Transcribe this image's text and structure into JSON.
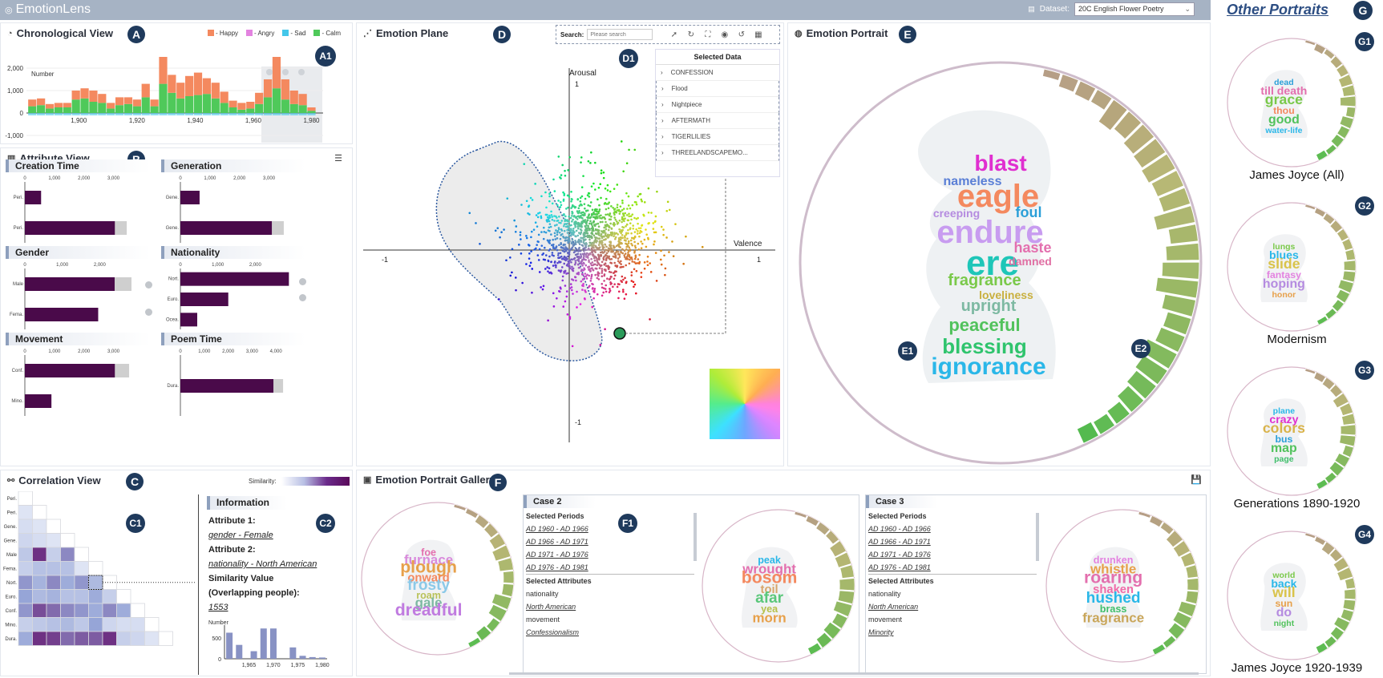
{
  "app": {
    "title": "EmotionLens",
    "dataset_label": "Dataset:",
    "dataset_value": "20C English Flower Poetry"
  },
  "chronological": {
    "badge": "A",
    "badge_sub": "A1",
    "title": "Chronological View",
    "ylabel": "Number",
    "legend": [
      {
        "label": "- Happy",
        "color": "#f4895f"
      },
      {
        "label": "- Angry",
        "color": "#e383e0"
      },
      {
        "label": "- Sad",
        "color": "#44c7ea"
      },
      {
        "label": "- Calm",
        "color": "#4fc95a"
      }
    ],
    "yticks": [
      "2,000",
      "1,000",
      "0",
      "-1,000"
    ],
    "xticks": [
      "1,900",
      "1,920",
      "1,940",
      "1,960",
      "1,980"
    ],
    "chart_data": {
      "type": "bar",
      "x": [
        1884,
        1887,
        1890,
        1893,
        1896,
        1899,
        1902,
        1905,
        1908,
        1911,
        1914,
        1917,
        1920,
        1923,
        1926,
        1929,
        1932,
        1935,
        1938,
        1941,
        1944,
        1947,
        1950,
        1953,
        1956,
        1959,
        1962,
        1965,
        1968,
        1971,
        1974,
        1977,
        1980
      ],
      "series": [
        {
          "name": "- Calm",
          "values": [
            300,
            350,
            200,
            250,
            250,
            600,
            650,
            500,
            450,
            200,
            350,
            400,
            300,
            700,
            300,
            1300,
            900,
            650,
            750,
            800,
            850,
            650,
            450,
            250,
            150,
            200,
            400,
            700,
            1100,
            600,
            400,
            350,
            100
          ]
        },
        {
          "name": "- Happy",
          "values": [
            300,
            300,
            200,
            200,
            200,
            400,
            450,
            500,
            400,
            250,
            350,
            300,
            300,
            600,
            300,
            1200,
            800,
            700,
            900,
            1000,
            700,
            700,
            500,
            300,
            300,
            300,
            500,
            800,
            1400,
            900,
            600,
            500,
            150
          ]
        }
      ],
      "ylim": [
        -1000,
        2500
      ],
      "xlim": [
        1882,
        1984
      ]
    }
  },
  "attribute": {
    "badge": "B",
    "title": "Attribute View",
    "charts": [
      {
        "title": "Creation Time",
        "ticks": [
          "0",
          "1,000",
          "2,000",
          "3,000"
        ],
        "rows": [
          {
            "label": "Peri.",
            "value": 550,
            "grey": 0
          },
          {
            "label": "Peri.",
            "value": 3050,
            "grey": 400
          }
        ],
        "max": 3800
      },
      {
        "title": "Generation",
        "ticks": [
          "0",
          "1,000",
          "2,000",
          "3,000"
        ],
        "rows": [
          {
            "label": "Gene.",
            "value": 650,
            "grey": 0
          },
          {
            "label": "Gene.",
            "value": 3100,
            "grey": 400
          }
        ],
        "max": 3800
      },
      {
        "title": "Gender",
        "ticks": [
          "0",
          "1,000",
          "2,000"
        ],
        "rows": [
          {
            "label": "Male",
            "value": 2400,
            "grey": 450
          },
          {
            "label": "Fema.",
            "value": 1960,
            "grey": 0
          }
        ],
        "max": 3000
      },
      {
        "title": "Nationality",
        "ticks": [
          "0",
          "1,000",
          "2,000"
        ],
        "rows": [
          {
            "label": "Nort.",
            "value": 2900,
            "grey": 0
          },
          {
            "label": "Euro.",
            "value": 1280,
            "grey": 0
          },
          {
            "label": "Ocea.",
            "value": 450,
            "grey": 0
          }
        ],
        "max": 3000
      },
      {
        "title": "Movement",
        "ticks": [
          "0",
          "1,000",
          "2,000",
          "3,000"
        ],
        "rows": [
          {
            "label": "Conf.",
            "value": 3050,
            "grey": 480
          },
          {
            "label": "Mino.",
            "value": 900,
            "grey": 0
          }
        ],
        "max": 3800
      },
      {
        "title": "Poem Time",
        "ticks": [
          "0",
          "1,000",
          "2,000",
          "3,000",
          "4,000"
        ],
        "rows": [
          {
            "label": "Dura.",
            "value": 3900,
            "grey": 400
          }
        ],
        "max": 4700
      }
    ]
  },
  "correlation": {
    "badge": "C",
    "c1": "C1",
    "c2": "C2",
    "title": "Correlation View",
    "sim_label": "Similarity:",
    "labels": [
      "Peri.",
      "Peri.",
      "Gene.",
      "Gene.",
      "Male",
      "Fema.",
      "Nort.",
      "Euro.",
      "Conf.",
      "Mino.",
      "Dura."
    ],
    "matrix": [
      [
        0
      ],
      [
        0.05,
        0
      ],
      [
        0.1,
        0.05,
        0
      ],
      [
        0.15,
        0.1,
        0.05,
        0
      ],
      [
        0.25,
        0.9,
        0.2,
        0.6,
        0
      ],
      [
        0.2,
        0.3,
        0.3,
        0.3,
        0.05,
        0
      ],
      [
        0.55,
        0.4,
        0.6,
        0.45,
        0.55,
        0.35,
        0
      ],
      [
        0.5,
        0.35,
        0.4,
        0.3,
        0.3,
        0.45,
        0.2,
        0
      ],
      [
        0.55,
        0.8,
        0.7,
        0.6,
        0.55,
        0.45,
        0.6,
        0.45,
        0
      ],
      [
        0.2,
        0.25,
        0.3,
        0.35,
        0.25,
        0.5,
        0.15,
        0.1,
        0.1,
        0
      ],
      [
        0.45,
        0.9,
        0.85,
        0.7,
        0.75,
        0.75,
        0.9,
        0.2,
        0.15,
        0.05,
        0
      ]
    ],
    "info": {
      "title": "Information",
      "a1_label": "Attribute 1:",
      "a1_value": "gender - Female",
      "a2_label": "Attribute 2:",
      "a2_value": "nationality - North American",
      "sim_label1": "Similarity Value",
      "sim_label2": "(Overlapping people):",
      "sim_value": "1553",
      "hist_ylabel": "Number",
      "hist_yticks": [
        "500",
        "0"
      ],
      "hist_xticks": [
        "1,965",
        "1,970",
        "1,975",
        "1,980"
      ],
      "chart_data": {
        "type": "bar",
        "x": [
          1961,
          1963,
          1966,
          1968,
          1970,
          1974,
          1976,
          1978,
          1980
        ],
        "values": [
          620,
          330,
          180,
          720,
          720,
          270,
          70,
          40,
          30
        ],
        "ylim": [
          0,
          800
        ],
        "xlim": [
          1960,
          1981
        ]
      }
    }
  },
  "emotion_plane": {
    "badge": "D",
    "badge_sub": "D1",
    "title": "Emotion Plane",
    "search_label": "Search:",
    "search_placeholder": "Please search",
    "arousal": "Arousal",
    "valence": "Valence",
    "ticks": {
      "top": "1",
      "bottom": "-1",
      "left": "-1",
      "right": "1"
    },
    "selected_header": "Selected Data",
    "selected": [
      "CONFESSION",
      "Flood",
      "Nightpiece",
      "AFTERMATH",
      "TIGERLILIES",
      "THREELANDSCAPEMO..."
    ]
  },
  "portrait": {
    "badge": "E",
    "e1": "E1",
    "e2": "E2",
    "title": "Emotion Portrait",
    "words": [
      {
        "t": "blast",
        "c": "#e02fd0"
      },
      {
        "t": "nameless",
        "c": "#5a7fd6"
      },
      {
        "t": "eagle",
        "c": "#f4895f"
      },
      {
        "t": "creeping",
        "c": "#b58be0"
      },
      {
        "t": "foul",
        "c": "#2a9fd8"
      },
      {
        "t": "endure",
        "c": "#c89cf0"
      },
      {
        "t": "ere",
        "c": "#1ec6b8"
      },
      {
        "t": "haste",
        "c": "#e36fae"
      },
      {
        "t": "damned",
        "c": "#e06fa3"
      },
      {
        "t": "fragrance",
        "c": "#7ac94a"
      },
      {
        "t": "loveliness",
        "c": "#c9b03f"
      },
      {
        "t": "upright",
        "c": "#7db9a2"
      },
      {
        "t": "peaceful",
        "c": "#51c25c"
      },
      {
        "t": "blessing",
        "c": "#2fc46d"
      },
      {
        "t": "ignorance",
        "c": "#2ab7e8"
      }
    ]
  },
  "gallery": {
    "badge": "F",
    "f1": "F1",
    "title": "Emotion Portrait Gallery",
    "case2": {
      "title": "Case 2",
      "periods_label": "Selected Periods",
      "periods": [
        "AD 1960 - AD 1966",
        "AD 1966 - AD 1971",
        "AD 1971 - AD 1976",
        "AD 1976 - AD 1981"
      ],
      "attr_label": "Selected Attributes",
      "attrs": [
        {
          "k": "nationality",
          "v": "North American"
        },
        {
          "k": "movement",
          "v": "Confessionalism"
        }
      ]
    },
    "case3": {
      "title": "Case 3",
      "periods_label": "Selected Periods",
      "periods": [
        "AD 1960 - AD 1966",
        "AD 1966 - AD 1971",
        "AD 1971 - AD 1976",
        "AD 1976 - AD 1981"
      ],
      "attr_label": "Selected Attributes",
      "attrs": [
        {
          "k": "nationality",
          "v": "North American"
        },
        {
          "k": "movement",
          "v": "Minority"
        }
      ]
    },
    "portraits": [
      {
        "words": [
          {
            "t": "foe",
            "c": "#e36fae"
          },
          {
            "t": "furnace",
            "c": "#d98bdc"
          },
          {
            "t": "plough",
            "c": "#e7a04a"
          },
          {
            "t": "onward",
            "c": "#f4895f"
          },
          {
            "t": "frosty",
            "c": "#8bc9e8"
          },
          {
            "t": "roam",
            "c": "#b9c25a"
          },
          {
            "t": "gale",
            "c": "#7db9a2"
          },
          {
            "t": "dreadful",
            "c": "#c07be0"
          }
        ]
      },
      {
        "words": [
          {
            "t": "peak",
            "c": "#2ab7e8"
          },
          {
            "t": "wrought",
            "c": "#e36fae"
          },
          {
            "t": "bosom",
            "c": "#f4895f"
          },
          {
            "t": "toil",
            "c": "#d7a56a"
          },
          {
            "t": "afar",
            "c": "#5ac77a"
          },
          {
            "t": "yea",
            "c": "#b5c04a"
          },
          {
            "t": "morn",
            "c": "#e7a04a"
          }
        ]
      },
      {
        "words": [
          {
            "t": "drunken",
            "c": "#e383e0"
          },
          {
            "t": "whistle",
            "c": "#e7a04a"
          },
          {
            "t": "roaring",
            "c": "#e36fae"
          },
          {
            "t": "shaken",
            "c": "#f06aa8"
          },
          {
            "t": "hushed",
            "c": "#2ab7e8"
          },
          {
            "t": "brass",
            "c": "#3fbf6a"
          },
          {
            "t": "fragrance",
            "c": "#c9a65a"
          }
        ]
      }
    ]
  },
  "other_portraits": {
    "title": "Other Portraits",
    "badge": "G",
    "items": [
      {
        "badge": "G1",
        "label": "James Joyce (All)",
        "words": [
          {
            "t": "dead",
            "c": "#2a9fd8"
          },
          {
            "t": "till death",
            "c": "#e36fae"
          },
          {
            "t": "grace",
            "c": "#7ac94a"
          },
          {
            "t": "thou",
            "c": "#f4895f"
          },
          {
            "t": "good",
            "c": "#51c25c"
          },
          {
            "t": "water-life",
            "c": "#2ab7e8"
          }
        ]
      },
      {
        "badge": "G2",
        "label": "Modernism",
        "words": [
          {
            "t": "lungs",
            "c": "#7ac94a"
          },
          {
            "t": "blues",
            "c": "#2ab7e8"
          },
          {
            "t": "slide",
            "c": "#d9c34a"
          },
          {
            "t": "fantasy",
            "c": "#e383e0"
          },
          {
            "t": "hoping",
            "c": "#b58be0"
          },
          {
            "t": "honor",
            "c": "#e7a04a"
          }
        ]
      },
      {
        "badge": "G3",
        "label": "Generations 1890-1920",
        "words": [
          {
            "t": "plane",
            "c": "#2ab7e8"
          },
          {
            "t": "crazy",
            "c": "#e02fd0"
          },
          {
            "t": "colors",
            "c": "#d9b34a"
          },
          {
            "t": "bus",
            "c": "#2a9fd8"
          },
          {
            "t": "map",
            "c": "#51c25c"
          },
          {
            "t": "page",
            "c": "#3fbf6a"
          }
        ]
      },
      {
        "badge": "G4",
        "label": "James Joyce 1920-1939",
        "words": [
          {
            "t": "world",
            "c": "#7ac94a"
          },
          {
            "t": "back",
            "c": "#2ab7e8"
          },
          {
            "t": "will",
            "c": "#d9c34a"
          },
          {
            "t": "sun",
            "c": "#e7a04a"
          },
          {
            "t": "do",
            "c": "#b58be0"
          },
          {
            "t": "night",
            "c": "#51c25c"
          }
        ]
      }
    ]
  }
}
